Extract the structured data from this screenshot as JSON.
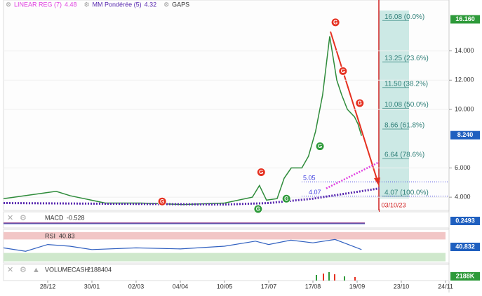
{
  "chart_data": {
    "type": "line",
    "legend": [
      {
        "name": "LINEAR REG (7)",
        "value": "4.48",
        "color": "#e040e0"
      },
      {
        "name": "MM Pondérée (5)",
        "value": "4.32",
        "color": "#5a2bb0"
      },
      {
        "name": "GAPS",
        "value": null,
        "color": "#333333"
      }
    ],
    "categories": [
      "28/12",
      "30/01",
      "02/03",
      "04/04",
      "10/05",
      "17/07",
      "17/08",
      "19/09",
      "23/10",
      "24/11"
    ],
    "ylim": [
      3,
      17
    ],
    "yticks": [
      {
        "value": 4,
        "label": "4.000"
      },
      {
        "value": 6,
        "label": "6.000"
      },
      {
        "value": 10,
        "label": "10.000"
      },
      {
        "value": 12,
        "label": "12.000"
      },
      {
        "value": 14,
        "label": "14.000"
      }
    ],
    "last_high": {
      "value": 16.16,
      "label": "16.160"
    },
    "last_price": {
      "value": 8.24,
      "label": "8.240"
    },
    "series": [
      {
        "name": "Price",
        "color": "#2e8b3a",
        "x": [
          -1.0,
          0.19,
          0.51,
          1.3,
          2.1,
          3.05,
          4.0,
          4.63,
          4.79,
          4.95,
          5.19,
          5.35,
          5.51,
          5.75,
          5.9,
          6.06,
          6.22,
          6.3,
          6.38,
          6.46,
          6.54,
          6.65,
          6.78,
          6.94,
          7.02,
          7.1
        ],
        "values": [
          3.9,
          4.4,
          4.1,
          3.6,
          3.6,
          3.5,
          3.6,
          4.0,
          4.8,
          3.8,
          3.9,
          5.3,
          6.0,
          6.0,
          6.8,
          8.5,
          11.0,
          13.0,
          15.0,
          13.5,
          12.0,
          11.0,
          10.0,
          9.5,
          9.0,
          8.2
        ]
      },
      {
        "name": "MM Pondérée (5)",
        "color": "#5a2bb0",
        "x": [
          -1,
          4,
          5,
          6,
          7.5
        ],
        "values": [
          3.6,
          3.5,
          3.6,
          3.9,
          4.6
        ]
      },
      {
        "name": "LINEAR REG (7)",
        "color": "#e040e0",
        "x": [
          6.3,
          7.5
        ],
        "values": [
          4.6,
          6.4
        ]
      }
    ],
    "fibonacci": [
      {
        "value": 16.08,
        "label": "16.08  (0.0%)"
      },
      {
        "value": 13.25,
        "label": "13.25  (23.6%)"
      },
      {
        "value": 11.5,
        "label": "11.50  (38.2%)"
      },
      {
        "value": 10.08,
        "label": "10.08  (50.0%)"
      },
      {
        "value": 8.66,
        "label": "8.66  (61.8%)"
      },
      {
        "value": 6.64,
        "label": "6.64  (78.6%)"
      },
      {
        "value": 4.07,
        "label": "4.07  (100.0%)"
      }
    ],
    "levels": [
      {
        "value": 5.05,
        "label": "5.05"
      },
      {
        "value": 4.07,
        "label": "4.07"
      }
    ],
    "target_date": {
      "x": 7.5,
      "label": "03/10/23"
    },
    "signals": [
      {
        "text": "G",
        "x": 6.51,
        "y": 15.95,
        "color": "#e53020"
      },
      {
        "text": "G",
        "x": 6.68,
        "y": 12.62,
        "color": "#e53020"
      },
      {
        "text": "G",
        "x": 7.06,
        "y": 10.43,
        "color": "#e53020"
      },
      {
        "text": "G",
        "x": 4.83,
        "y": 5.71,
        "color": "#e53020"
      },
      {
        "text": "G",
        "x": 2.59,
        "y": 3.71,
        "color": "#e53020"
      },
      {
        "text": "G",
        "x": 6.16,
        "y": 7.48,
        "color": "#2e9a3a"
      },
      {
        "text": "G",
        "x": 5.4,
        "y": 3.9,
        "color": "#2e9a3a"
      },
      {
        "text": "G",
        "x": 4.76,
        "y": 3.19,
        "color": "#2e9a3a"
      }
    ],
    "macd": {
      "title": "MACD",
      "value": "-0.528",
      "last": "0.2493"
    },
    "rsi": {
      "title": "RSI",
      "value": "40.83",
      "last": "40.832",
      "ylim": [
        0,
        100
      ],
      "x": [
        -1,
        -0.5,
        0,
        0.5,
        1,
        2,
        3,
        4,
        4.7,
        5,
        5.5,
        6,
        6.5,
        6.8,
        7.1
      ],
      "values": [
        45,
        35,
        55,
        50,
        40,
        45,
        42,
        50,
        65,
        55,
        68,
        60,
        70,
        55,
        40
      ]
    },
    "volume": {
      "title": "VOLUMECASH",
      "value": "2188404",
      "last": "2188K"
    }
  }
}
